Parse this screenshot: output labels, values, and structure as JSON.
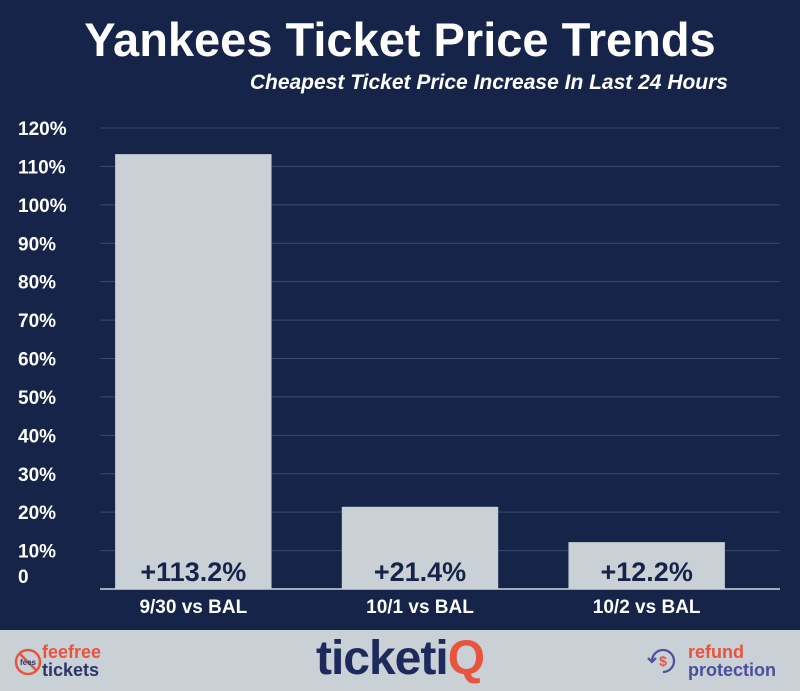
{
  "title": "Yankees Ticket Price Trends",
  "subtitle": "Cheapest Ticket Price Increase In Last 24 Hours",
  "chart_data": {
    "type": "bar",
    "categories": [
      "9/30 vs BAL",
      "10/1 vs BAL",
      "10/2 vs BAL"
    ],
    "values": [
      113.2,
      21.4,
      12.2
    ],
    "data_labels": [
      "+113.2%",
      "+21.4%",
      "+12.2%"
    ],
    "y_ticks": [
      0,
      10,
      20,
      30,
      40,
      50,
      60,
      70,
      80,
      90,
      100,
      110,
      120
    ],
    "y_tick_labels": [
      "0",
      "10%",
      "20%",
      "30%",
      "40%",
      "50%",
      "60%",
      "70%",
      "80%",
      "90%",
      "100%",
      "110%",
      "120%"
    ],
    "ylim": [
      0,
      120
    ],
    "grid": true,
    "colors": {
      "background": "#162449",
      "bar": "#c9d0d6",
      "grid": "#3a4872",
      "text": "#ffffff",
      "label": "#162449"
    }
  },
  "footer": {
    "left_logo": {
      "line1": "feefree",
      "line2": "tickets",
      "icon": "no-fees-icon",
      "icon_text": "fees"
    },
    "brand": {
      "main": "ticketi",
      "accent": "Q"
    },
    "right_logo": {
      "line1": "refund",
      "line2": "protection",
      "icon": "dollar-refund-icon",
      "icon_text": "$"
    }
  }
}
